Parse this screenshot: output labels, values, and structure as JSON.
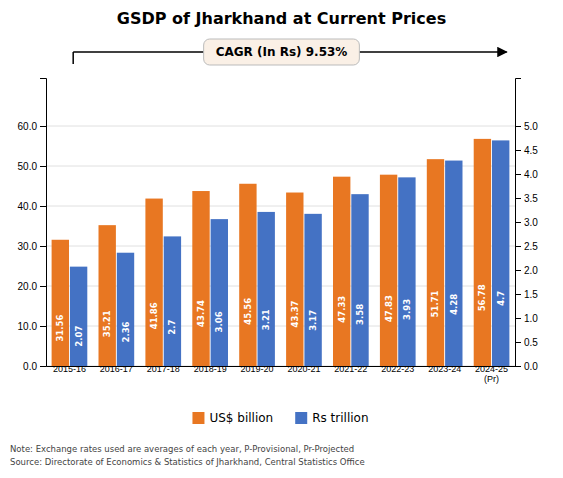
{
  "chart_data": {
    "type": "bar",
    "title": "GSDP of Jharkhand at Current Prices",
    "categories": [
      "2015-16",
      "2016-17",
      "2017-18",
      "2018-19",
      "2019-20",
      "2020-21",
      "2021-22",
      "2022-23",
      "2023-24",
      "2024-25\n(Pr)"
    ],
    "series": [
      {
        "name": "US$ billion",
        "color": "#E87722",
        "values": [
          31.56,
          35.21,
          41.86,
          43.74,
          45.56,
          43.37,
          47.33,
          47.83,
          51.71,
          56.78
        ]
      },
      {
        "name": "Rs trillion",
        "color": "#4472C4",
        "axis": "y2",
        "values": [
          2.07,
          2.36,
          2.7,
          3.06,
          3.21,
          3.17,
          3.58,
          3.93,
          4.28,
          4.7
        ]
      }
    ],
    "ylim": [
      0,
      72
    ],
    "yticks": [
      {
        "value": 0,
        "label": "0.0"
      },
      {
        "value": 10,
        "label": "10.0"
      },
      {
        "value": 20,
        "label": "20.0"
      },
      {
        "value": 30,
        "label": "30.0"
      },
      {
        "value": 40,
        "label": "40.0"
      },
      {
        "value": 50,
        "label": "50.0"
      },
      {
        "value": 60,
        "label": "60.0"
      }
    ],
    "y2lim": [
      0,
      6.0
    ],
    "y2ticks": [
      {
        "value": 0,
        "label": "0.0"
      },
      {
        "value": 0.5,
        "label": "0.5"
      },
      {
        "value": 1,
        "label": "1.0"
      },
      {
        "value": 1.5,
        "label": "1.5"
      },
      {
        "value": 2,
        "label": "2.0"
      },
      {
        "value": 2.5,
        "label": "2.5"
      },
      {
        "value": 3,
        "label": "3.0"
      },
      {
        "value": 3.5,
        "label": "3.5"
      },
      {
        "value": 4,
        "label": "4.0"
      },
      {
        "value": 4.5,
        "label": "4.5"
      },
      {
        "value": 5,
        "label": "5.0"
      }
    ],
    "annotations": [
      "CAGR (In Rs) 9.53%",
      "Note: Exchange rates used are averages of each year, P-Provisional, Pr-Projected",
      "Source: Directorate of Economics & Statistics of Jharkhand, Central Statistics Office"
    ],
    "grid": true,
    "legend": "bottom",
    "data_labels": true
  }
}
